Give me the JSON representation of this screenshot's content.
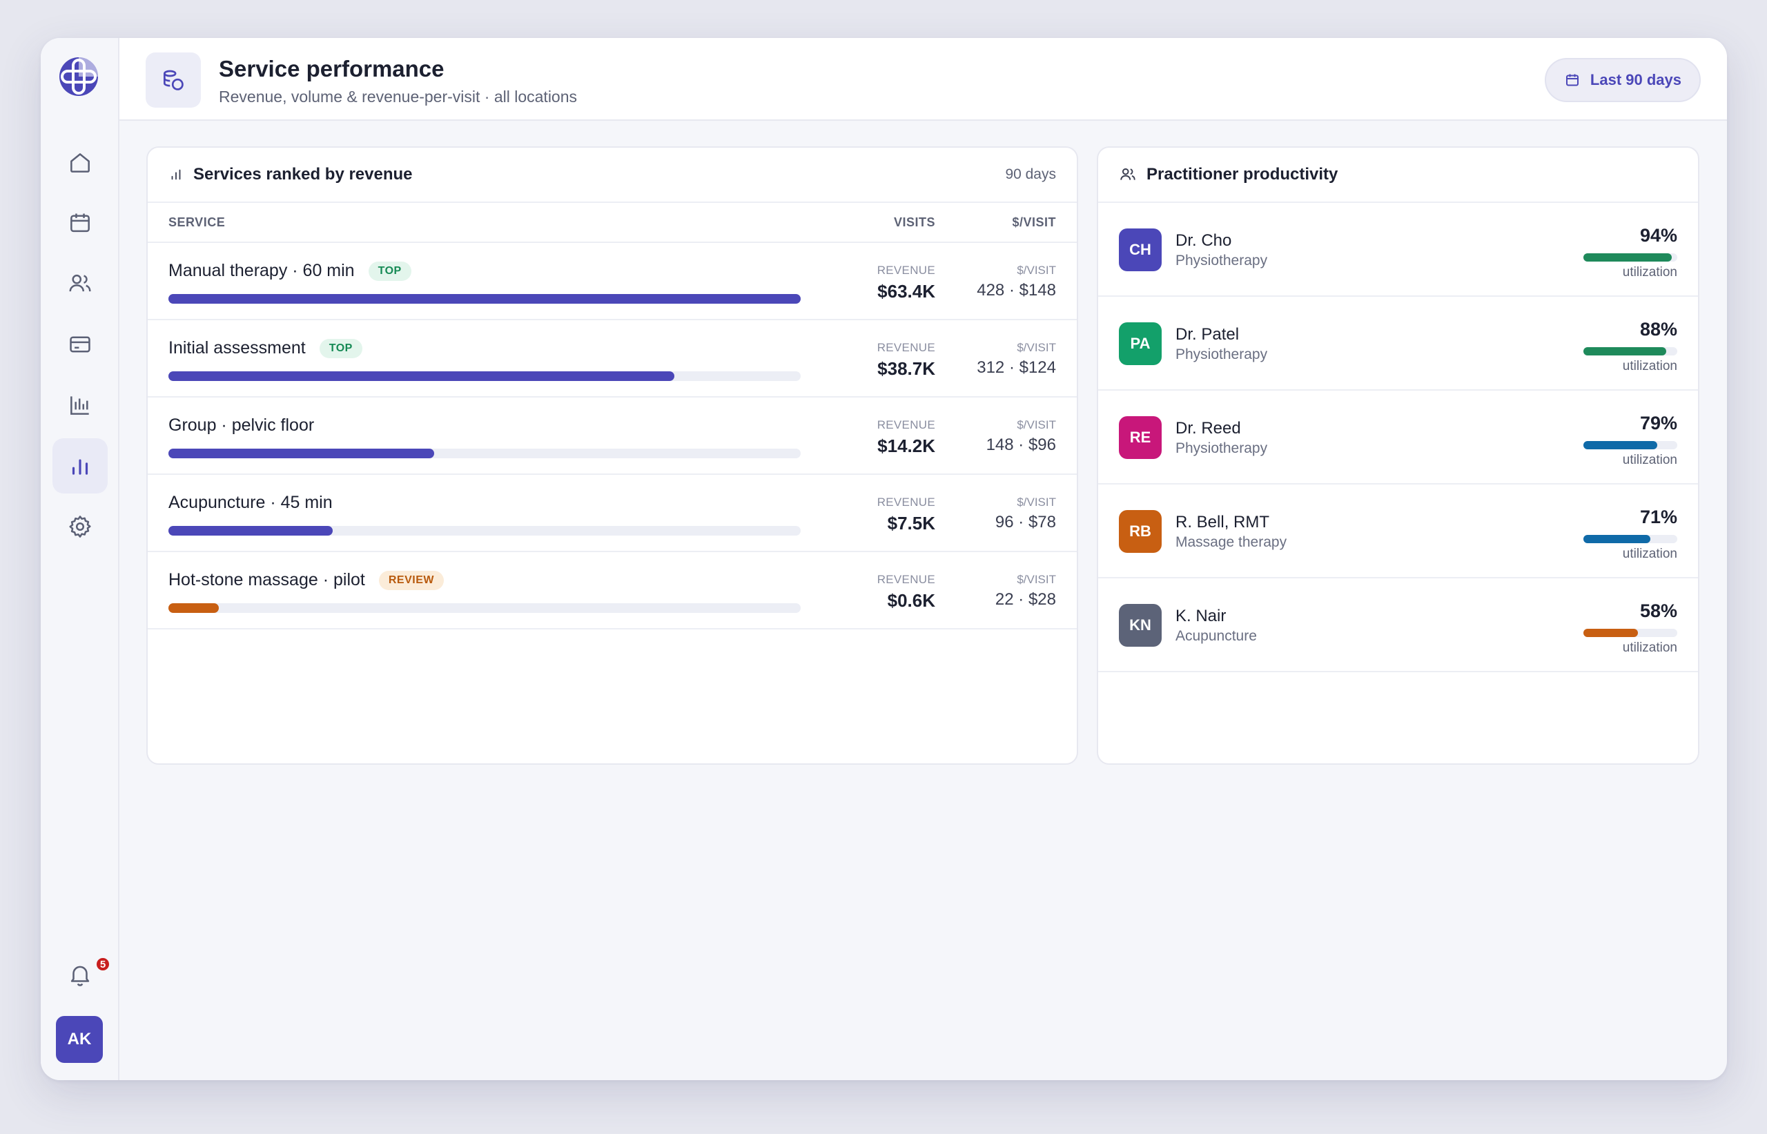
{
  "sidebar": {
    "logo_icon": "cross-logo-icon",
    "items": [
      {
        "name": "home",
        "icon": "home-icon"
      },
      {
        "name": "calendar",
        "icon": "calendar-icon"
      },
      {
        "name": "patients",
        "icon": "users-icon"
      },
      {
        "name": "billing",
        "icon": "card-icon"
      },
      {
        "name": "reports",
        "icon": "bars-icon"
      },
      {
        "name": "analytics",
        "icon": "chart-icon",
        "active": true
      },
      {
        "name": "settings",
        "icon": "gear-icon"
      }
    ],
    "notifications_count": "5",
    "user_initials": "AK"
  },
  "header": {
    "title": "Service performance",
    "subtitle": "Revenue, volume & revenue-per-visit · all locations",
    "range_label": "Last 90 days"
  },
  "services": {
    "title": "Services ranked by revenue",
    "period": "90 days",
    "col_service": "SERVICE",
    "col_visits": "VISITS",
    "col_per_visit": "$/VISIT",
    "revenue_label": "REVENUE",
    "per_visit_label": "$/VISIT",
    "rows": [
      {
        "name": "Manual therapy · 60 min",
        "tag": "TOP",
        "tag_type": "top",
        "share": 1.0,
        "color": "#4b47b8",
        "revenue": "$63.4K",
        "visits_per": "428 · $148"
      },
      {
        "name": "Initial assessment",
        "tag": "TOP",
        "tag_type": "top",
        "share": 0.8,
        "color": "#4b47b8",
        "revenue": "$38.7K",
        "visits_per": "312 · $124"
      },
      {
        "name": "Group · pelvic floor",
        "tag": "",
        "tag_type": "",
        "share": 0.42,
        "color": "#4b47b8",
        "revenue": "$14.2K",
        "visits_per": "148 · $96"
      },
      {
        "name": "Acupuncture · 45 min",
        "tag": "",
        "tag_type": "",
        "share": 0.26,
        "color": "#4b47b8",
        "revenue": "$7.5K",
        "visits_per": "96 · $78"
      },
      {
        "name": "Hot-stone massage · pilot",
        "tag": "REVIEW",
        "tag_type": "review",
        "share": 0.08,
        "color": "#c85f12",
        "revenue": "$0.6K",
        "visits_per": "22 · $28"
      }
    ]
  },
  "practitioners": {
    "title": "Practitioner productivity",
    "util_label": "utilization",
    "rows": [
      {
        "initials": "CH",
        "name": "Dr. Cho",
        "role": "Physiotherapy",
        "pct": "94%",
        "value": 0.94,
        "avatar_color": "#4b47b8",
        "bar_color": "#1f8a5b"
      },
      {
        "initials": "PA",
        "name": "Dr. Patel",
        "role": "Physiotherapy",
        "pct": "88%",
        "value": 0.88,
        "avatar_color": "#13a06a",
        "bar_color": "#1f8a5b"
      },
      {
        "initials": "RE",
        "name": "Dr. Reed",
        "role": "Physiotherapy",
        "pct": "79%",
        "value": 0.79,
        "avatar_color": "#c8177a",
        "bar_color": "#0f6aa8"
      },
      {
        "initials": "RB",
        "name": "R. Bell, RMT",
        "role": "Massage therapy",
        "pct": "71%",
        "value": 0.71,
        "avatar_color": "#c85f12",
        "bar_color": "#0f6aa8"
      },
      {
        "initials": "KN",
        "name": "K. Nair",
        "role": "Acupuncture",
        "pct": "58%",
        "value": 0.58,
        "avatar_color": "#5c6378",
        "bar_color": "#c85f12"
      }
    ]
  }
}
